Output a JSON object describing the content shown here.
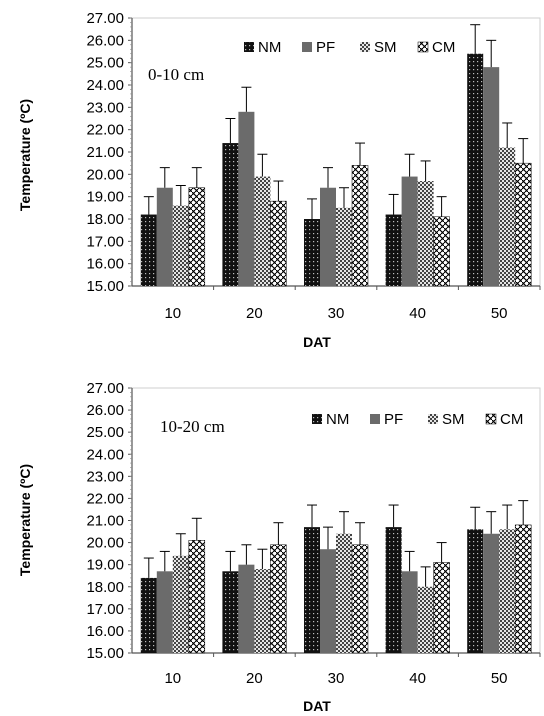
{
  "chart_data": [
    {
      "type": "bar",
      "panel_label": "0-10 cm",
      "categories": [
        "10",
        "20",
        "30",
        "40",
        "50"
      ],
      "series": [
        {
          "name": "NM",
          "values": [
            18.2,
            21.4,
            18.0,
            18.2,
            25.4
          ],
          "errors": [
            0.8,
            1.1,
            0.9,
            0.9,
            1.3
          ]
        },
        {
          "name": "PF",
          "values": [
            19.4,
            22.8,
            19.4,
            19.9,
            24.8
          ],
          "errors": [
            0.9,
            1.1,
            0.9,
            1.0,
            1.2
          ]
        },
        {
          "name": "SM",
          "values": [
            18.6,
            19.9,
            18.5,
            19.7,
            21.2
          ],
          "errors": [
            0.9,
            1.0,
            0.9,
            0.9,
            1.1
          ]
        },
        {
          "name": "CM",
          "values": [
            19.4,
            18.8,
            20.4,
            18.1,
            20.5
          ],
          "errors": [
            0.9,
            0.9,
            1.0,
            0.9,
            1.1
          ]
        }
      ],
      "ylabel": "Temperature (ºC)",
      "xlabel": "DAT",
      "ylim": [
        15,
        27
      ],
      "yticks": [
        "15.00",
        "16.00",
        "17.00",
        "18.00",
        "19.00",
        "20.00",
        "21.00",
        "22.00",
        "23.00",
        "24.00",
        "25.00",
        "26.00",
        "27.00"
      ],
      "legend": "top-right",
      "grid": false
    },
    {
      "type": "bar",
      "panel_label": "10-20 cm",
      "categories": [
        "10",
        "20",
        "30",
        "40",
        "50"
      ],
      "series": [
        {
          "name": "NM",
          "values": [
            18.4,
            18.7,
            20.7,
            20.7,
            20.6
          ],
          "errors": [
            0.9,
            0.9,
            1.0,
            1.0,
            1.0
          ]
        },
        {
          "name": "PF",
          "values": [
            18.7,
            19.0,
            19.7,
            18.7,
            20.4
          ],
          "errors": [
            0.9,
            0.9,
            1.0,
            0.9,
            1.0
          ]
        },
        {
          "name": "SM",
          "values": [
            19.4,
            18.8,
            20.4,
            18.0,
            20.6
          ],
          "errors": [
            1.0,
            0.9,
            1.0,
            0.9,
            1.1
          ]
        },
        {
          "name": "CM",
          "values": [
            20.1,
            19.9,
            19.9,
            19.1,
            20.8
          ],
          "errors": [
            1.0,
            1.0,
            1.0,
            0.9,
            1.1
          ]
        }
      ],
      "ylabel": "Temperature (ºC)",
      "xlabel": "DAT",
      "ylim": [
        15,
        27
      ],
      "yticks": [
        "15.00",
        "16.00",
        "17.00",
        "18.00",
        "19.00",
        "20.00",
        "21.00",
        "22.00",
        "23.00",
        "24.00",
        "25.00",
        "26.00",
        "27.00"
      ],
      "legend": "top-right",
      "grid": false
    }
  ],
  "colors": {
    "NM": "#1a1a1a",
    "PF": "#6b6b6b",
    "SM": "#9a9a9a",
    "CM": "#ffffff"
  }
}
